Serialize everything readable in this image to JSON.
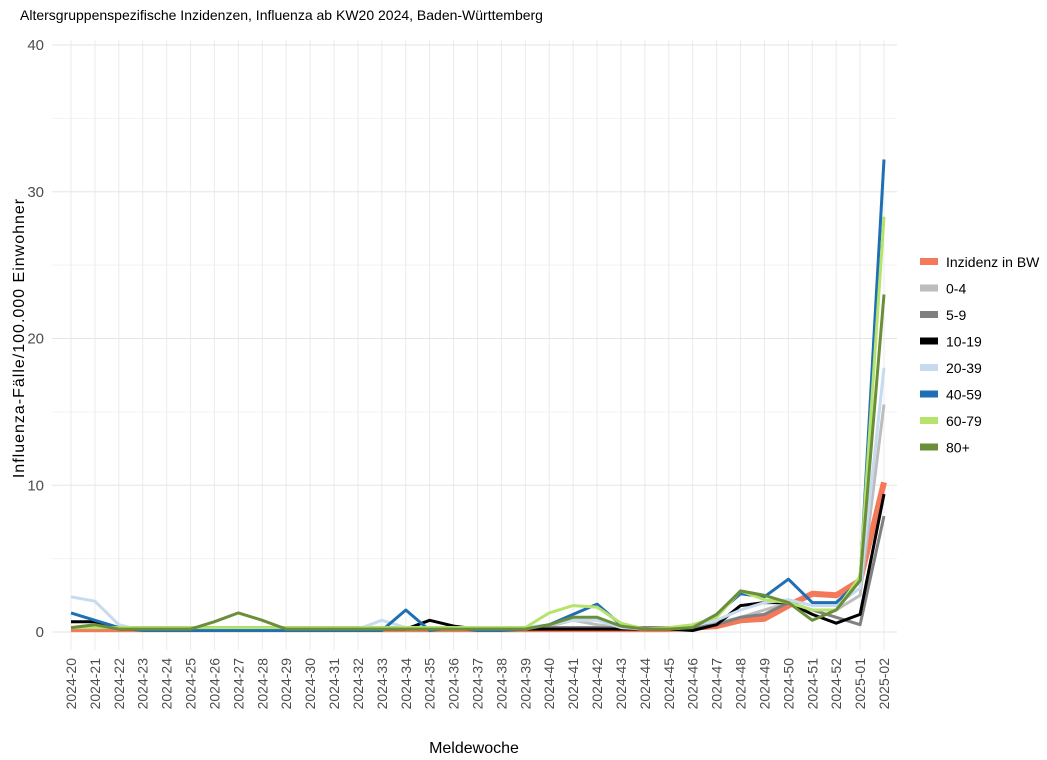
{
  "chart_data": {
    "type": "line",
    "title": "Altersgruppenspezifische Inzidenzen, Influenza ab KW20 2024, Baden-Württemberg",
    "xlabel": "Meldewoche",
    "ylabel": "Influenza-Fälle/100.000 Einwohner",
    "categories": [
      "2024-20",
      "2024-21",
      "2024-22",
      "2024-23",
      "2024-24",
      "2024-25",
      "2024-26",
      "2024-27",
      "2024-28",
      "2024-29",
      "2024-30",
      "2024-31",
      "2024-32",
      "2024-33",
      "2024-34",
      "2024-35",
      "2024-36",
      "2024-37",
      "2024-38",
      "2024-39",
      "2024-40",
      "2024-41",
      "2024-42",
      "2024-43",
      "2024-44",
      "2024-45",
      "2024-46",
      "2024-47",
      "2024-48",
      "2024-49",
      "2024-50",
      "2024-51",
      "2024-52",
      "2025-01",
      "2025-02"
    ],
    "ylim": [
      0,
      40
    ],
    "yticks": [
      0,
      10,
      20,
      30,
      40
    ],
    "grid": true,
    "legend": "right",
    "series": [
      {
        "name": "Inzidenz in BW",
        "color": "#f4795b",
        "values": [
          0.2,
          0.2,
          0.2,
          0.2,
          0.2,
          0.2,
          0.2,
          0.2,
          0.2,
          0.2,
          0.2,
          0.2,
          0.2,
          0.2,
          0.2,
          0.2,
          0.2,
          0.2,
          0.2,
          0.2,
          0.2,
          0.2,
          0.2,
          0.2,
          0.2,
          0.2,
          0.3,
          0.4,
          0.8,
          0.9,
          1.8,
          2.6,
          2.5,
          3.5,
          10.2
        ]
      },
      {
        "name": "0-4",
        "color": "#bdbdbd",
        "values": [
          0.3,
          0.3,
          0.3,
          0.3,
          0.3,
          0.3,
          0.3,
          0.3,
          0.3,
          0.3,
          0.3,
          0.3,
          0.3,
          0.3,
          0.3,
          0.3,
          0.3,
          0.3,
          0.3,
          0.3,
          0.4,
          0.8,
          0.5,
          0.3,
          0.2,
          0.3,
          0.4,
          0.6,
          1.0,
          1.5,
          2.0,
          1.5,
          1.5,
          2.5,
          15.5
        ]
      },
      {
        "name": "5-9",
        "color": "#808080",
        "values": [
          0.3,
          0.3,
          0.3,
          0.3,
          0.3,
          0.3,
          0.3,
          0.3,
          0.3,
          0.3,
          0.3,
          0.3,
          0.3,
          0.3,
          0.3,
          0.3,
          0.3,
          0.3,
          0.3,
          0.3,
          0.3,
          0.3,
          0.3,
          0.3,
          0.3,
          0.3,
          0.3,
          0.5,
          1.0,
          1.2,
          2.0,
          1.5,
          1.0,
          0.5,
          7.9
        ]
      },
      {
        "name": "10-19",
        "color": "#000000",
        "values": [
          0.7,
          0.7,
          0.2,
          0.2,
          0.2,
          0.2,
          0.2,
          0.2,
          0.2,
          0.2,
          0.2,
          0.2,
          0.2,
          0.2,
          0.2,
          0.8,
          0.4,
          0.2,
          0.2,
          0.2,
          0.2,
          0.2,
          0.2,
          0.2,
          0.2,
          0.2,
          0.1,
          0.5,
          1.8,
          2.0,
          2.0,
          1.2,
          0.6,
          1.2,
          9.4
        ]
      },
      {
        "name": "20-39",
        "color": "#c6dbef",
        "values": [
          2.4,
          2.1,
          0.5,
          0.1,
          0.2,
          0.2,
          0.2,
          0.2,
          0.2,
          0.2,
          0.2,
          0.2,
          0.2,
          0.8,
          0.3,
          0.3,
          0.3,
          0.3,
          0.3,
          0.3,
          0.5,
          0.8,
          0.8,
          0.3,
          0.2,
          0.3,
          0.4,
          0.8,
          1.5,
          2.0,
          2.2,
          1.8,
          1.8,
          3.0,
          18
        ]
      },
      {
        "name": "40-59",
        "color": "#1f6fb4",
        "values": [
          1.3,
          0.8,
          0.3,
          0.1,
          0.1,
          0.1,
          0.1,
          0.1,
          0.1,
          0.1,
          0.1,
          0.1,
          0.1,
          0.1,
          1.5,
          0.1,
          0.3,
          0.1,
          0.1,
          0.2,
          0.5,
          1.2,
          1.9,
          0.5,
          0.2,
          0.3,
          0.3,
          1.2,
          2.6,
          2.4,
          3.6,
          2.0,
          2.0,
          3.5,
          32.2
        ]
      },
      {
        "name": "60-79",
        "color": "#b5e36b",
        "values": [
          0.3,
          0.3,
          0.3,
          0.3,
          0.3,
          0.3,
          0.3,
          0.3,
          0.3,
          0.3,
          0.3,
          0.3,
          0.3,
          0.3,
          0.3,
          0.3,
          0.3,
          0.3,
          0.3,
          0.3,
          1.3,
          1.8,
          1.7,
          0.6,
          0.2,
          0.3,
          0.5,
          1.0,
          2.8,
          2.2,
          2.0,
          1.5,
          1.5,
          3.8,
          28.3
        ]
      },
      {
        "name": "80+",
        "color": "#6b8e3a",
        "values": [
          0.3,
          0.5,
          0.2,
          0.2,
          0.2,
          0.2,
          0.7,
          1.3,
          0.8,
          0.2,
          0.2,
          0.2,
          0.2,
          0.2,
          0.2,
          0.2,
          0.2,
          0.2,
          0.2,
          0.2,
          0.5,
          1.0,
          1.0,
          0.4,
          0.2,
          0.2,
          0.3,
          1.2,
          2.8,
          2.5,
          2.0,
          0.8,
          1.5,
          3.5,
          23.0
        ]
      }
    ]
  }
}
